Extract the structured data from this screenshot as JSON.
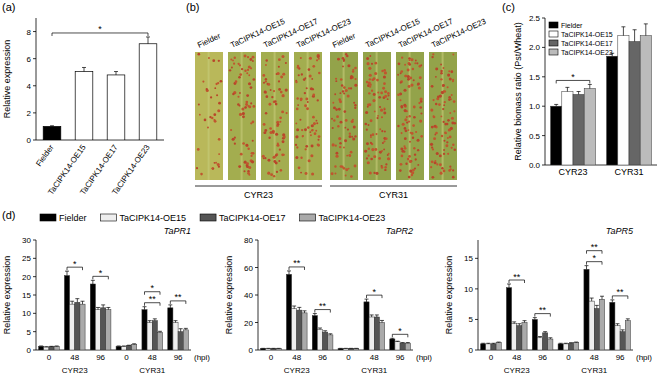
{
  "chart_data": [
    {
      "type": "bar",
      "panel_label": "(a)",
      "y_label": "Relative expression",
      "categories": [
        "Fielder",
        "TaCIPK14-OE15",
        "TaCIPK14-OE17",
        "TaCIPK14-OE23"
      ],
      "values": [
        1.0,
        5.05,
        4.8,
        7.1
      ],
      "errors": [
        0.05,
        0.3,
        0.25,
        0.5
      ],
      "colors": [
        "#000000",
        "#ffffff",
        "#ffffff",
        "#ffffff"
      ],
      "ylim": [
        0,
        9
      ],
      "yticks": [
        0,
        2,
        4,
        6,
        8
      ],
      "significance": [
        {
          "from": 0,
          "to": 3,
          "label": "*"
        }
      ]
    },
    {
      "type": "bar",
      "panel_label": "(c)",
      "y_label": "Relative biomass ratio (Pst/Wheat)",
      "categories": [
        "CYR23",
        "CYR31"
      ],
      "series": [
        {
          "name": "Fielder",
          "color": "#000000",
          "values": [
            1.0,
            1.85
          ],
          "errors": [
            0.03,
            0.05
          ]
        },
        {
          "name": "TaCIPK14-OE15",
          "color": "#ffffff",
          "values": [
            1.25,
            2.2
          ],
          "errors": [
            0.07,
            0.15
          ]
        },
        {
          "name": "TaCIPK14-OE17",
          "color": "#666666",
          "values": [
            1.2,
            2.1
          ],
          "errors": [
            0.05,
            0.2
          ]
        },
        {
          "name": "TaCIPK14-OE23",
          "color": "#bbbbbb",
          "values": [
            1.3,
            2.2
          ],
          "errors": [
            0.07,
            0.2
          ]
        }
      ],
      "ylim": [
        0,
        2.5
      ],
      "yticks": [
        {
          "value": 0,
          "label": "0.0"
        },
        {
          "value": 0.5,
          "label": "0.5"
        },
        {
          "value": 1,
          "label": "1.0"
        },
        {
          "value": 1.5,
          "label": "1.5"
        },
        {
          "value": 2,
          "label": "2.0"
        },
        {
          "value": 2.5,
          "label": "2.5"
        }
      ],
      "legend": "top-left",
      "significance": [
        {
          "group": 0,
          "label": "*"
        }
      ]
    },
    {
      "type": "bar",
      "panel_label": "(d)",
      "title": "TaPR1",
      "y_label": "Relative expression",
      "x_label": "(hpi)",
      "categories": [
        "0",
        "48",
        "96",
        "0",
        "48",
        "96"
      ],
      "category_groups": [
        "CYR23",
        "CYR31"
      ],
      "series": [
        {
          "name": "Fielder",
          "color": "#000000",
          "values": [
            1.0,
            20.3,
            18.0,
            1.0,
            11.0,
            11.5
          ],
          "errors": [
            0.1,
            1.2,
            1.0,
            0.1,
            0.8,
            0.8
          ]
        },
        {
          "name": "TaCIPK14-OE15",
          "color": "#eeeeee",
          "values": [
            0.8,
            12.5,
            11.0,
            1.0,
            7.5,
            7.5
          ],
          "errors": [
            0.1,
            0.8,
            0.6,
            0.1,
            0.5,
            0.5
          ]
        },
        {
          "name": "TaCIPK14-OE17",
          "color": "#555555",
          "values": [
            0.9,
            13.0,
            11.5,
            1.2,
            8.0,
            5.0
          ],
          "errors": [
            0.1,
            1.0,
            0.8,
            0.1,
            0.5,
            0.8
          ]
        },
        {
          "name": "TaCIPK14-OE23",
          "color": "#aaaaaa",
          "values": [
            1.0,
            12.5,
            11.0,
            1.5,
            4.8,
            5.5
          ],
          "errors": [
            0.1,
            0.8,
            0.6,
            0.2,
            0.3,
            0.4
          ]
        }
      ],
      "ylim": [
        0,
        30
      ],
      "yticks": [
        0,
        5,
        10,
        15,
        20,
        25,
        30
      ],
      "legend": "top",
      "significance": [
        {
          "group": 1,
          "label": "*"
        },
        {
          "group": 2,
          "label": "*"
        },
        {
          "group": 4,
          "label": "**"
        },
        {
          "group": 4,
          "label": "*"
        },
        {
          "group": 5,
          "label": "**"
        }
      ]
    },
    {
      "type": "bar",
      "title": "TaPR2",
      "y_label": "Relative expression",
      "x_label": "(hpi)",
      "categories": [
        "0",
        "48",
        "96",
        "0",
        "48",
        "96"
      ],
      "category_groups": [
        "CYR23",
        "CYR31"
      ],
      "series": [
        {
          "color": "#000000",
          "values": [
            1,
            55,
            25,
            1,
            35,
            8
          ],
          "errors": [
            0.2,
            2.5,
            1.5,
            0.2,
            2,
            0.5
          ]
        },
        {
          "color": "#eeeeee",
          "values": [
            1,
            30,
            15,
            1,
            24,
            6
          ],
          "errors": [
            0.2,
            2,
            1,
            0.2,
            1.5,
            0.4
          ]
        },
        {
          "color": "#555555",
          "values": [
            1,
            29,
            13,
            1,
            24,
            5
          ],
          "errors": [
            0.2,
            2,
            1,
            0.2,
            1.5,
            0.4
          ]
        },
        {
          "color": "#aaaaaa",
          "values": [
            1,
            27,
            11,
            1,
            20,
            5
          ],
          "errors": [
            0.2,
            1.5,
            0.8,
            0.2,
            1.5,
            0.4
          ]
        }
      ],
      "ylim": [
        0,
        80
      ],
      "yticks": [
        0,
        20,
        40,
        60,
        80
      ],
      "significance": [
        {
          "group": 1,
          "label": "**"
        },
        {
          "group": 2,
          "label": "**"
        },
        {
          "group": 4,
          "label": "*"
        },
        {
          "group": 5,
          "label": "*"
        }
      ]
    },
    {
      "type": "bar",
      "title": "TaPR5",
      "y_label": "Relative expression",
      "x_label": "(hpi)",
      "categories": [
        "0",
        "48",
        "96",
        "0",
        "48",
        "96"
      ],
      "category_groups": [
        "CYR23",
        "CYR31"
      ],
      "series": [
        {
          "color": "#000000",
          "values": [
            1,
            10.2,
            5,
            1,
            13.2,
            7.8
          ],
          "errors": [
            0.1,
            0.6,
            0.3,
            0.1,
            0.6,
            0.4
          ]
        },
        {
          "color": "#eeeeee",
          "values": [
            1,
            4.3,
            2,
            1,
            8,
            4
          ],
          "errors": [
            0.1,
            0.3,
            0.2,
            0.1,
            0.5,
            0.3
          ]
        },
        {
          "color": "#555555",
          "values": [
            1,
            4,
            2.8,
            1.1,
            6.8,
            3
          ],
          "errors": [
            0.1,
            0.3,
            0.2,
            0.1,
            0.5,
            0.3
          ]
        },
        {
          "color": "#aaaaaa",
          "values": [
            1.2,
            4.5,
            1.8,
            1.2,
            8.3,
            4.8
          ],
          "errors": [
            0.1,
            0.3,
            0.2,
            0.1,
            0.5,
            0.3
          ]
        }
      ],
      "ylim": [
        0,
        18
      ],
      "yticks": [
        0,
        5,
        10,
        15
      ],
      "significance": [
        {
          "group": 1,
          "label": "**"
        },
        {
          "group": 2,
          "label": "**"
        },
        {
          "group": 4,
          "label": "*"
        },
        {
          "group": 4,
          "label": "**"
        },
        {
          "group": 5,
          "label": "**"
        }
      ]
    }
  ],
  "photo": {
    "panel_label": "(b)",
    "labels": [
      "Fielder",
      "TaCIPK14-OE15",
      "TaCIPK14-OE17",
      "TaCIPK14-OE23"
    ],
    "groups": [
      "CYR23",
      "CYR31"
    ]
  }
}
